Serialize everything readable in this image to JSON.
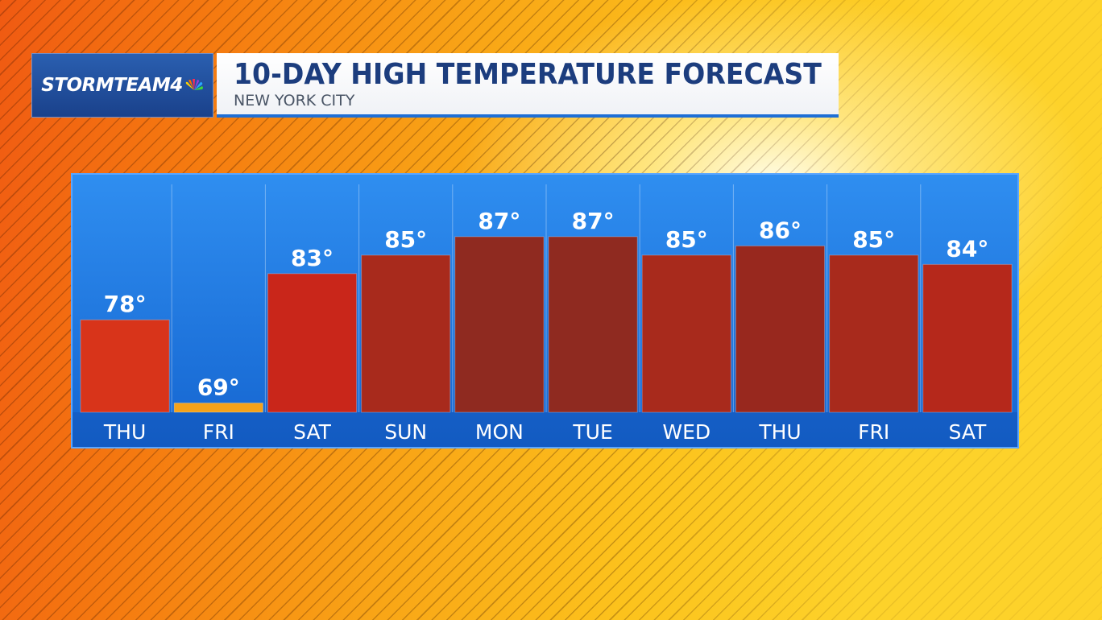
{
  "brand": {
    "logo_text": "STORMTEAM4",
    "logo_icon": "nbc-peacock-icon"
  },
  "header": {
    "title": "10-DAY HIGH TEMPERATURE FORECAST",
    "subtitle": "NEW YORK CITY"
  },
  "colors": {
    "panel_blue": "#1e78e6",
    "bar_warm_red": "#d42a12",
    "bar_hot_red": "#8f2a20",
    "bar_cool_orange": "#f5a21a",
    "title_navy": "#1c3d7e"
  },
  "chart_data": {
    "type": "bar",
    "title": "10-DAY HIGH TEMPERATURE FORECAST",
    "subtitle": "NEW YORK CITY",
    "categories": [
      "THU",
      "FRI",
      "SAT",
      "SUN",
      "MON",
      "TUE",
      "WED",
      "THU",
      "FRI",
      "SAT"
    ],
    "values": [
      78,
      69,
      83,
      85,
      87,
      87,
      85,
      86,
      85,
      84
    ],
    "value_labels": [
      "78°",
      "69°",
      "83°",
      "85°",
      "87°",
      "87°",
      "85°",
      "86°",
      "85°",
      "84°"
    ],
    "bar_colors": [
      "#d8341a",
      "#f5a21a",
      "#c9261a",
      "#a82a1c",
      "#8f2a20",
      "#8f2a20",
      "#a82a1c",
      "#98281e",
      "#a82a1c",
      "#b5281b"
    ],
    "ylim": [
      68,
      89
    ],
    "xlabel": "",
    "ylabel": "",
    "grid": false
  }
}
